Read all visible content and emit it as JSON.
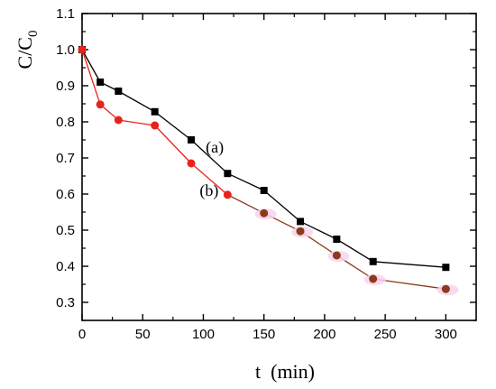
{
  "chart_data": {
    "type": "line",
    "xlabel": "t  (min)",
    "ylabel": "C/C",
    "ylabel_subscript": "0",
    "xlim": [
      0,
      325
    ],
    "ylim": [
      0.25,
      1.1
    ],
    "xticks": [
      0,
      50,
      100,
      150,
      200,
      250,
      300
    ],
    "yticks": [
      0.3,
      0.4,
      0.5,
      0.6,
      0.7,
      0.8,
      0.9,
      1.0,
      1.1
    ],
    "xtick_labels": [
      "0",
      "50",
      "100",
      "150",
      "200",
      "250",
      "300"
    ],
    "ytick_labels": [
      "0.3",
      "0.4",
      "0.5",
      "0.6",
      "0.7",
      "0.8",
      "0.9",
      "1.0",
      "1.1"
    ],
    "grid": false,
    "legend": "none",
    "x": [
      0,
      15,
      30,
      60,
      90,
      120,
      150,
      180,
      210,
      240,
      300
    ],
    "series": [
      {
        "label": "(a)",
        "color": "#000000",
        "marker": "square",
        "values": [
          1.0,
          0.91,
          0.885,
          0.828,
          0.75,
          0.657,
          0.61,
          0.524,
          0.475,
          0.413,
          0.397
        ]
      },
      {
        "label": "(b)",
        "color": "#e8231c",
        "late_color": "#8b3a1a",
        "marker": "circle",
        "values": [
          1.0,
          0.848,
          0.805,
          0.79,
          0.685,
          0.598,
          0.547,
          0.497,
          0.43,
          0.365,
          0.337
        ]
      }
    ],
    "annotations": [
      {
        "text": "(a)",
        "series": 0,
        "x": 102,
        "y": 0.715
      },
      {
        "text": "(b)",
        "series": 1,
        "x": 97,
        "y": 0.595
      }
    ]
  }
}
